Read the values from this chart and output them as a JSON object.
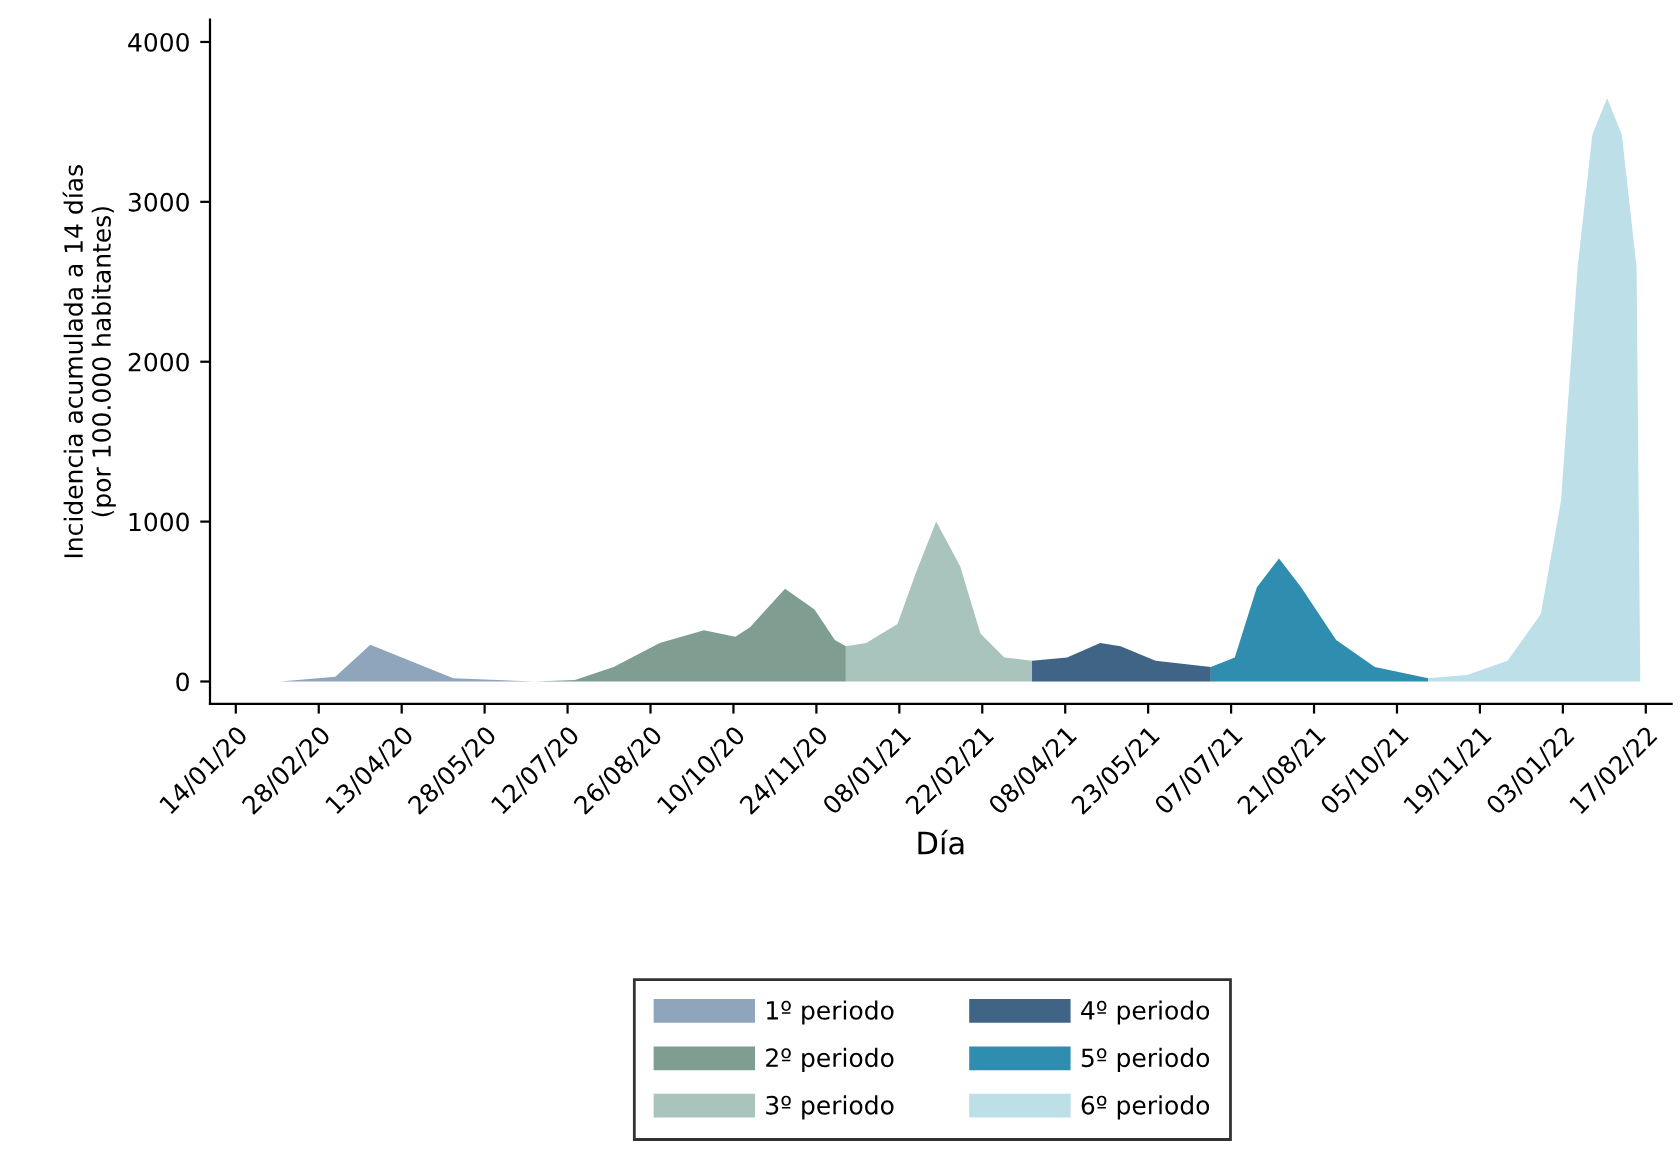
{
  "chart_data": {
    "type": "area",
    "xlabel": "Día",
    "ylabel": "Incidencia acumulada a 14 días\n(por 100.000 habitantes)",
    "xlim": [
      "2019-12-31",
      "2022-03-03"
    ],
    "ylim": [
      -140,
      4140
    ],
    "yticks": [
      0,
      1000,
      2000,
      3000,
      4000
    ],
    "xticks": [
      {
        "value": "2020-01-14",
        "label": "14/01/20"
      },
      {
        "value": "2020-02-28",
        "label": "28/02/20"
      },
      {
        "value": "2020-04-13",
        "label": "13/04/20"
      },
      {
        "value": "2020-05-28",
        "label": "28/05/20"
      },
      {
        "value": "2020-07-12",
        "label": "12/07/20"
      },
      {
        "value": "2020-08-26",
        "label": "26/08/20"
      },
      {
        "value": "2020-10-10",
        "label": "10/10/20"
      },
      {
        "value": "2020-11-24",
        "label": "24/11/20"
      },
      {
        "value": "2021-01-08",
        "label": "08/01/21"
      },
      {
        "value": "2021-02-22",
        "label": "22/02/21"
      },
      {
        "value": "2021-04-08",
        "label": "08/04/21"
      },
      {
        "value": "2021-05-23",
        "label": "23/05/21"
      },
      {
        "value": "2021-07-07",
        "label": "07/07/21"
      },
      {
        "value": "2021-08-21",
        "label": "21/08/21"
      },
      {
        "value": "2021-10-05",
        "label": "05/10/21"
      },
      {
        "value": "2021-11-19",
        "label": "19/11/21"
      },
      {
        "value": "2022-01-03",
        "label": "03/01/22"
      },
      {
        "value": "2022-02-17",
        "label": "17/02/22"
      }
    ],
    "grid": false,
    "legend": "bottom",
    "series": [
      {
        "name": "1º periodo",
        "color": "#8fa5bb",
        "x": [
          "2020-02-07",
          "2020-03-08",
          "2020-03-27",
          "2020-05-11",
          "2020-06-24"
        ],
        "values": [
          0,
          30,
          230,
          20,
          0
        ]
      },
      {
        "name": "2º periodo",
        "color": "#7f9e91",
        "x": [
          "2020-06-24",
          "2020-07-16",
          "2020-08-06",
          "2020-08-31",
          "2020-09-24",
          "2020-10-11",
          "2020-10-19",
          "2020-11-07",
          "2020-11-23",
          "2020-12-04",
          "2020-12-10"
        ],
        "values": [
          0,
          10,
          90,
          240,
          320,
          280,
          340,
          580,
          450,
          260,
          220
        ]
      },
      {
        "name": "3º periodo",
        "color": "#a8c4bd",
        "x": [
          "2020-12-10",
          "2020-12-21",
          "2021-01-07",
          "2021-01-17",
          "2021-01-28",
          "2021-02-10",
          "2021-02-21",
          "2021-03-06",
          "2021-03-21"
        ],
        "values": [
          220,
          240,
          360,
          680,
          1000,
          720,
          300,
          150,
          130
        ]
      },
      {
        "name": "4º periodo",
        "color": "#3f6486",
        "x": [
          "2021-03-21",
          "2021-04-09",
          "2021-04-27",
          "2021-05-08",
          "2021-05-27",
          "2021-06-26"
        ],
        "values": [
          130,
          150,
          240,
          220,
          130,
          90
        ]
      },
      {
        "name": "5º periodo",
        "color": "#2f8db0",
        "x": [
          "2021-06-26",
          "2021-07-09",
          "2021-07-21",
          "2021-08-02",
          "2021-08-14",
          "2021-09-02",
          "2021-09-23",
          "2021-10-22"
        ],
        "values": [
          90,
          150,
          590,
          770,
          590,
          260,
          90,
          20
        ]
      },
      {
        "name": "6º periodo",
        "color": "#bcdfe8",
        "x": [
          "2021-10-22",
          "2021-11-12",
          "2021-12-04",
          "2021-12-22",
          "2022-01-02",
          "2022-01-11",
          "2022-01-19",
          "2022-01-27",
          "2022-02-04",
          "2022-02-12",
          "2022-02-14"
        ],
        "values": [
          20,
          40,
          130,
          420,
          1130,
          2590,
          3420,
          3650,
          3420,
          2590,
          0
        ]
      }
    ]
  }
}
